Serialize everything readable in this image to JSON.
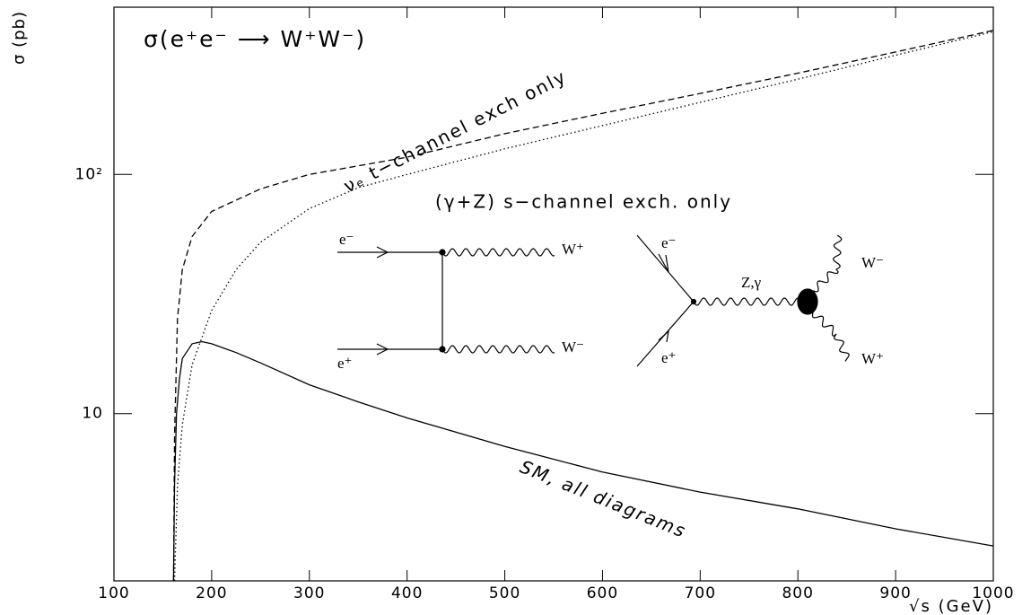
{
  "chart_data": {
    "type": "line",
    "title": "σ(e⁺e⁻ ⟶ W⁺W⁻)",
    "x_label": "√s (GeV)",
    "y_label": "σ (pb)",
    "log_y": true,
    "xlim": [
      100,
      1000
    ],
    "xticks": [
      100,
      200,
      300,
      400,
      500,
      600,
      700,
      800,
      900,
      1000
    ],
    "ylim": [
      2,
      500
    ],
    "yticks": [
      10,
      {
        "value": 100,
        "label": "10²"
      }
    ],
    "series": [
      {
        "name": "SM, all diagrams",
        "color": "#000000",
        "style": "solid",
        "x": [
          161,
          162,
          164,
          167,
          170,
          180,
          190,
          200,
          225,
          250,
          300,
          350,
          400,
          500,
          600,
          700,
          800,
          900,
          1000
        ],
        "values": [
          2,
          5,
          10,
          14,
          17,
          19.6,
          20,
          19.6,
          18,
          16.3,
          13.2,
          11.2,
          9.6,
          7.3,
          5.7,
          4.7,
          4.0,
          3.3,
          2.8
        ]
      },
      {
        "name": "νₑ t−channel exch only",
        "color": "#000000",
        "style": "dashed",
        "x": [
          161,
          162,
          165,
          170,
          180,
          200,
          250,
          300,
          400,
          500,
          600,
          700,
          800,
          900,
          1000
        ],
        "values": [
          2,
          8,
          25,
          40,
          55,
          70,
          87,
          100,
          118,
          148,
          180,
          218,
          265,
          325,
          400
        ]
      },
      {
        "name": "(γ+Z) s−channel exch. only",
        "color": "#000000",
        "style": "dotted",
        "x": [
          162,
          165,
          170,
          180,
          200,
          225,
          250,
          300,
          350,
          400,
          500,
          600,
          700,
          800,
          900,
          1000
        ],
        "values": [
          2,
          5,
          9,
          16,
          27,
          40,
          52,
          72,
          88,
          100,
          128,
          160,
          200,
          250,
          315,
          395
        ]
      }
    ],
    "diagram_labels": [
      "e⁻",
      "e⁺",
      "W⁺",
      "W⁻",
      "e⁻",
      "e⁺",
      "Z,γ",
      "W⁻",
      "W⁺"
    ]
  }
}
